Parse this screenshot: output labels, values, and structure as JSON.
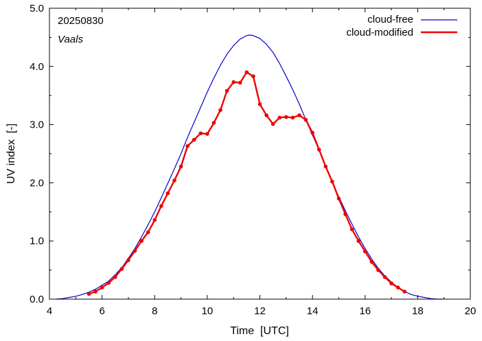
{
  "chart_data": {
    "type": "line",
    "title": "",
    "xlabel": "Time  [UTC]",
    "ylabel": "UV index  [-]",
    "xlim": [
      4,
      20
    ],
    "ylim": [
      0.0,
      5.0
    ],
    "x_ticks": [
      4,
      6,
      8,
      10,
      12,
      14,
      16,
      18,
      20
    ],
    "y_ticks": [
      "0.0",
      "1.0",
      "2.0",
      "3.0",
      "4.0",
      "5.0"
    ],
    "grid": false,
    "legend_position": "top-right",
    "annotations": {
      "date": "20250830",
      "location": "Vaals"
    },
    "series": [
      {
        "name": "cloud-free",
        "color": "#0000cc",
        "style": "line",
        "x": [
          4.25,
          4.5,
          4.75,
          5.0,
          5.25,
          5.5,
          5.75,
          6.0,
          6.25,
          6.5,
          6.75,
          7.0,
          7.25,
          7.5,
          7.75,
          8.0,
          8.25,
          8.5,
          8.75,
          9.0,
          9.25,
          9.5,
          9.75,
          10.0,
          10.25,
          10.5,
          10.75,
          11.0,
          11.25,
          11.5,
          11.6,
          11.75,
          12.0,
          12.25,
          12.5,
          12.75,
          13.0,
          13.25,
          13.5,
          13.75,
          14.0,
          14.25,
          14.5,
          14.75,
          15.0,
          15.25,
          15.5,
          15.75,
          16.0,
          16.25,
          16.5,
          16.75,
          17.0,
          17.25,
          17.5,
          17.75,
          18.0,
          18.25,
          18.5,
          18.75,
          18.95
        ],
        "values": [
          0.0,
          0.01,
          0.03,
          0.05,
          0.08,
          0.12,
          0.17,
          0.24,
          0.31,
          0.42,
          0.54,
          0.7,
          0.87,
          1.07,
          1.28,
          1.5,
          1.74,
          1.99,
          2.24,
          2.5,
          2.78,
          3.04,
          3.3,
          3.56,
          3.8,
          4.02,
          4.21,
          4.36,
          4.47,
          4.53,
          4.54,
          4.53,
          4.48,
          4.38,
          4.24,
          4.05,
          3.83,
          3.6,
          3.35,
          3.08,
          2.82,
          2.56,
          2.28,
          2.01,
          1.76,
          1.52,
          1.29,
          1.07,
          0.87,
          0.69,
          0.53,
          0.4,
          0.29,
          0.2,
          0.13,
          0.08,
          0.05,
          0.03,
          0.01,
          0.0,
          0.0
        ]
      },
      {
        "name": "cloud-modified",
        "color": "#ee0000",
        "style": "line-points",
        "x": [
          5.5,
          5.75,
          6.0,
          6.25,
          6.5,
          6.75,
          7.0,
          7.25,
          7.5,
          7.75,
          8.0,
          8.25,
          8.5,
          8.75,
          9.0,
          9.25,
          9.5,
          9.75,
          10.0,
          10.25,
          10.5,
          10.75,
          11.0,
          11.25,
          11.5,
          11.75,
          12.0,
          12.25,
          12.5,
          12.75,
          13.0,
          13.25,
          13.5,
          13.75,
          14.0,
          14.25,
          14.5,
          14.75,
          15.0,
          15.25,
          15.5,
          15.75,
          16.0,
          16.25,
          16.5,
          16.75,
          17.0,
          17.25,
          17.5
        ],
        "values": [
          0.09,
          0.13,
          0.2,
          0.28,
          0.38,
          0.52,
          0.67,
          0.83,
          1.0,
          1.15,
          1.36,
          1.6,
          1.82,
          2.04,
          2.28,
          2.63,
          2.74,
          2.85,
          2.84,
          3.03,
          3.25,
          3.58,
          3.73,
          3.72,
          3.9,
          3.83,
          3.35,
          3.16,
          3.01,
          3.12,
          3.13,
          3.12,
          3.16,
          3.08,
          2.86,
          2.57,
          2.28,
          2.02,
          1.73,
          1.46,
          1.2,
          1.0,
          0.82,
          0.64,
          0.5,
          0.38,
          0.27,
          0.2,
          0.13
        ]
      }
    ]
  }
}
